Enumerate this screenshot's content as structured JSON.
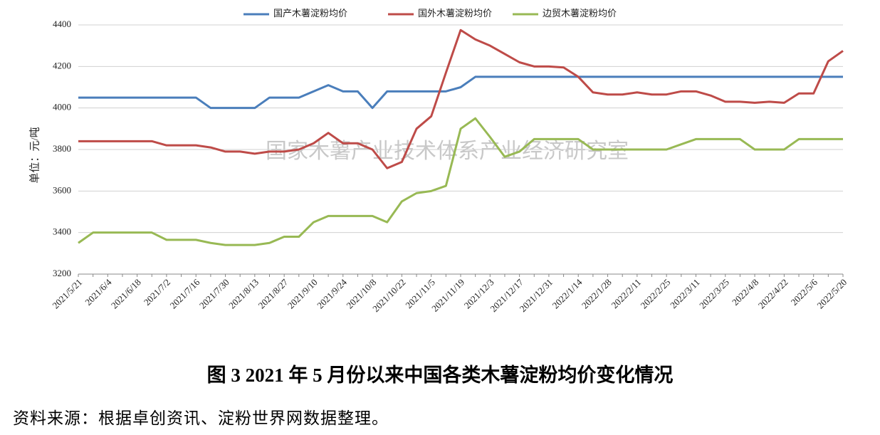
{
  "chart_data": {
    "type": "line",
    "y_label": "单位：元/吨",
    "watermark": "国家木薯产业技术体系产业经济研究室",
    "caption": "图 3   2021 年 5 月份以来中国各类木薯淀粉均价变化情况",
    "source": "资料来源：根据卓创资讯、淀粉世界网数据整理。",
    "categories": [
      "2021/5/21",
      null,
      "2021/6/4",
      null,
      "2021/6/18",
      null,
      "2021/7/2",
      null,
      "2021/7/16",
      null,
      "2021/7/30",
      null,
      "2021/8/13",
      null,
      "2021/8/27",
      null,
      "2021/9/10",
      null,
      "2021/9/24",
      null,
      "2021/10/8",
      null,
      "2021/10/22",
      null,
      "2021/11/5",
      null,
      "2021/11/19",
      null,
      "2021/12/3",
      null,
      "2021/12/17",
      null,
      "2021/12/31",
      null,
      "2022/1/14",
      null,
      "2022/1/28",
      null,
      "2022/2/11",
      null,
      "2022/2/25",
      null,
      "2022/3/11",
      null,
      "2022/3/25",
      null,
      "2022/4/8",
      null,
      "2022/4/22",
      null,
      "2022/5/6",
      null,
      "2022/5/20"
    ],
    "series": [
      {
        "name": "国产木薯淀粉均价",
        "color": "#4a7ebb",
        "values": [
          4050,
          4050,
          4050,
          4050,
          4050,
          4050,
          4050,
          4050,
          4050,
          4000,
          4000,
          4000,
          4000,
          4050,
          4050,
          4050,
          4080,
          4110,
          4080,
          4080,
          4000,
          4080,
          4080,
          4080,
          4080,
          4080,
          4100,
          4150,
          4150,
          4150,
          4150,
          4150,
          4150,
          4150,
          4150,
          4150,
          4150,
          4150,
          4150,
          4150,
          4150,
          4150,
          4150,
          4150,
          4150,
          4150,
          4150,
          4150,
          4150,
          4150,
          4150,
          4150,
          4150
        ]
      },
      {
        "name": "国外木薯淀粉均价",
        "color": "#be4b48",
        "values": [
          3840,
          3840,
          3840,
          3840,
          3840,
          3840,
          3820,
          3820,
          3820,
          3810,
          3790,
          3790,
          3780,
          3790,
          3790,
          3800,
          3830,
          3880,
          3830,
          3830,
          3800,
          3710,
          3740,
          3900,
          3960,
          4170,
          4375,
          4330,
          4300,
          4260,
          4220,
          4200,
          4200,
          4195,
          4150,
          4075,
          4065,
          4065,
          4075,
          4065,
          4065,
          4080,
          4080,
          4060,
          4030,
          4030,
          4025,
          4030,
          4025,
          4070,
          4070,
          4225,
          4275
        ]
      },
      {
        "name": "边贸木薯淀粉均价",
        "color": "#98b954",
        "values": [
          3350,
          3400,
          3400,
          3400,
          3400,
          3400,
          3365,
          3365,
          3365,
          3350,
          3340,
          3340,
          3340,
          3350,
          3380,
          3380,
          3450,
          3480,
          3480,
          3480,
          3480,
          3450,
          3550,
          3590,
          3600,
          3625,
          3900,
          3950,
          3860,
          3765,
          3790,
          3850,
          3850,
          3850,
          3850,
          3800,
          3800,
          3800,
          3800,
          3800,
          3800,
          3825,
          3850,
          3850,
          3850,
          3850,
          3800,
          3800,
          3800,
          3850,
          3850,
          3850,
          3850
        ]
      }
    ],
    "ylim": [
      3200,
      4400
    ],
    "yticks": [
      3200,
      3400,
      3600,
      3800,
      4000,
      4200,
      4400
    ],
    "grid": true
  }
}
